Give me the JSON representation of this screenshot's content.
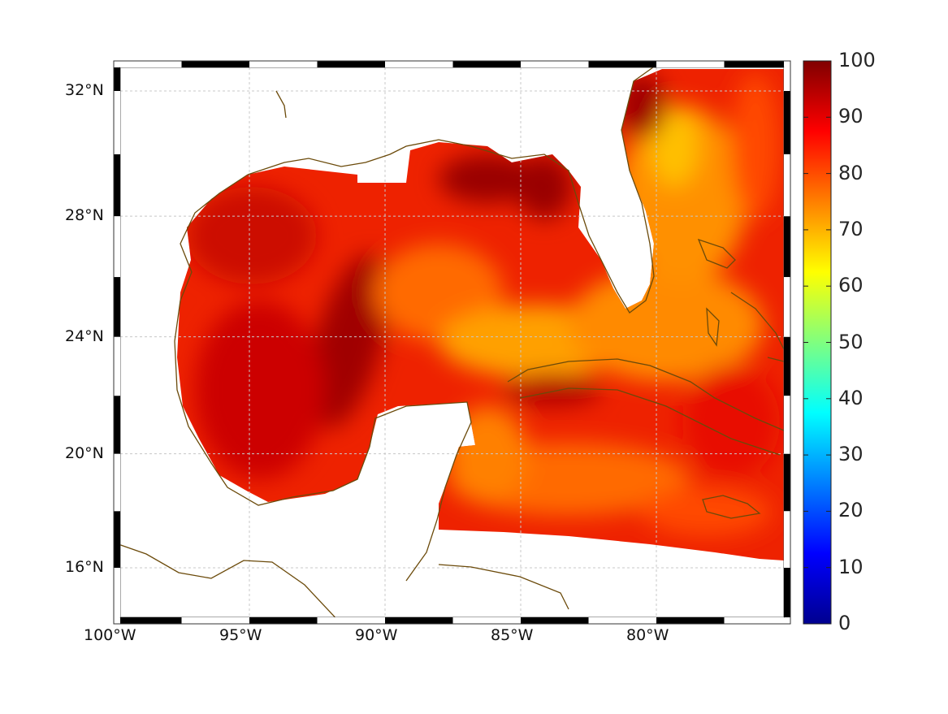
{
  "map": {
    "lon_labels": [
      "100°W",
      "95°W",
      "90°W",
      "85°W",
      "80°W"
    ],
    "lon_values": [
      -100,
      -95,
      -90,
      -85,
      -80
    ],
    "lat_labels": [
      "32°N",
      "28°N",
      "24°N",
      "20°N",
      "16°N"
    ],
    "lat_values": [
      32,
      28,
      24,
      20,
      16
    ],
    "extent": {
      "lon": [
        -100,
        -75
      ],
      "lat": [
        14.2,
        33
      ]
    }
  },
  "colorbar": {
    "colormap": "jet",
    "range": [
      0,
      100
    ],
    "ticks": [
      "0",
      "10",
      "20",
      "30",
      "40",
      "50",
      "60",
      "70",
      "80",
      "90",
      "100"
    ]
  },
  "colors": {
    "coast": "#6b4a0a",
    "grid": "#c8c8c8"
  }
}
